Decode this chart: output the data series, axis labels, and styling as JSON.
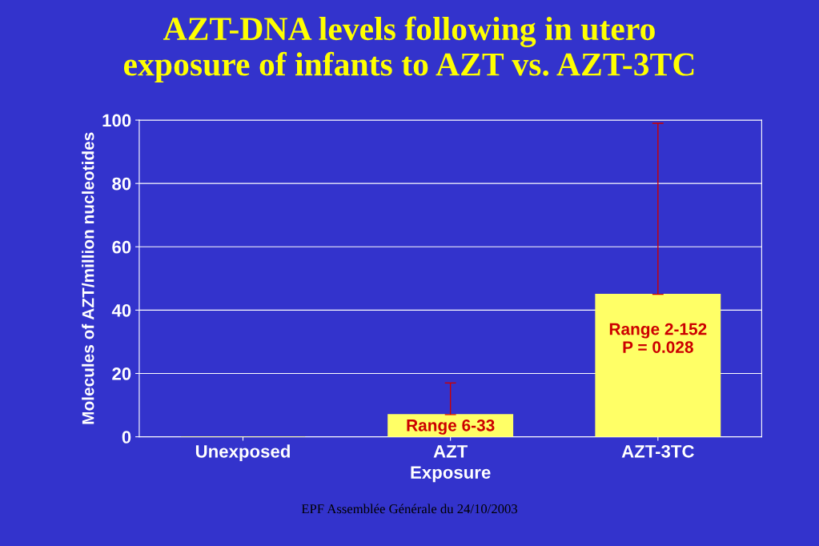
{
  "chart_data": {
    "type": "bar",
    "title": "AZT-DNA levels following in utero\nexposure of infants to AZT vs. AZT-3TC",
    "xlabel": "Exposure",
    "ylabel": "Molecules of AZT/million nucleotides",
    "categories": [
      "Unexposed",
      "AZT",
      "AZT-3TC"
    ],
    "values": [
      0,
      7,
      45
    ],
    "errors": [
      null,
      [
        7,
        17
      ],
      [
        45,
        99
      ]
    ],
    "color": "#ffff66",
    "ylim": [
      0,
      100
    ],
    "yticks": [
      0,
      20,
      40,
      60,
      80,
      100
    ],
    "grid": "y",
    "value_labels": [
      null,
      "Range 6-33",
      "Range 2-152\nP = 0.028"
    ],
    "annotations": [
      "EPF Assemblée Générale du 24/10/2003"
    ]
  }
}
